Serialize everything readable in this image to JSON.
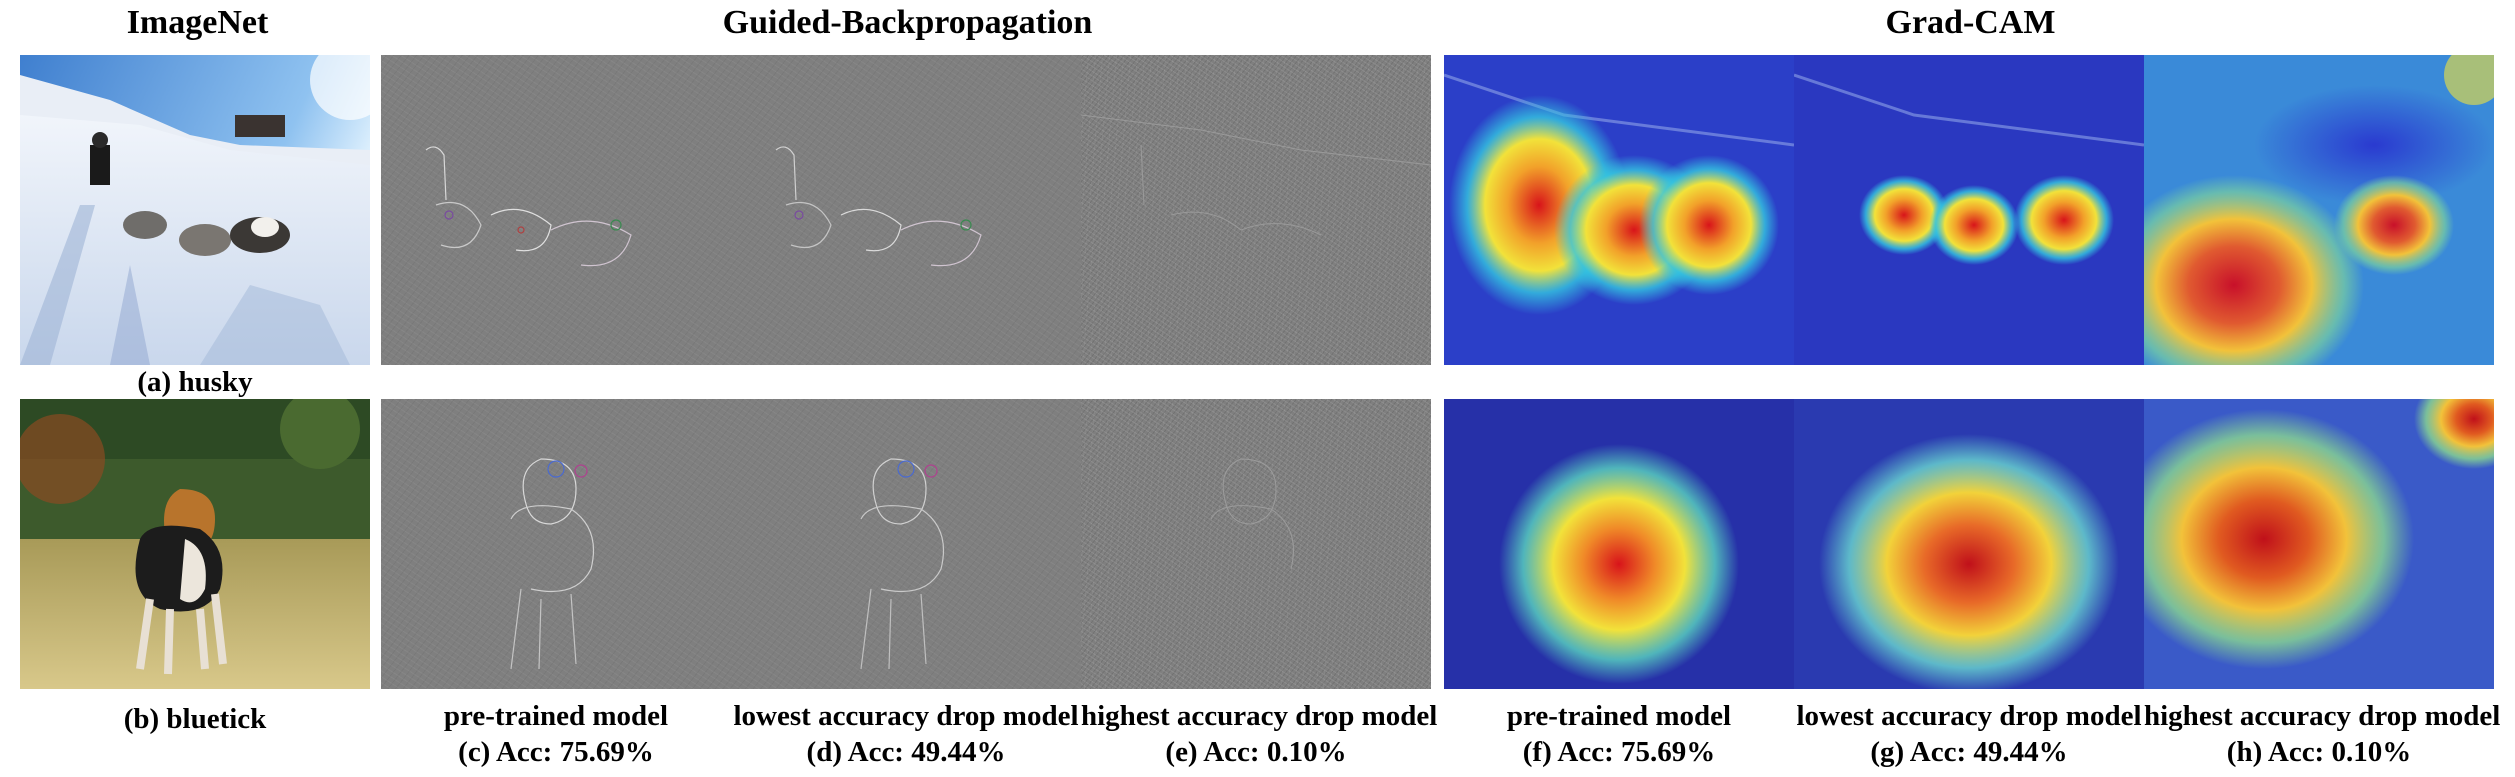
{
  "headers": {
    "imagenet": "ImageNet",
    "guided_backprop": "Guided-Backpropagation",
    "gradcam": "Grad-CAM"
  },
  "rows": [
    {
      "label": "(a) husky"
    },
    {
      "label": "(b) bluetick"
    }
  ],
  "columns": [
    {
      "model": "pre-trained model",
      "acc": "(c) Acc: 75.69%"
    },
    {
      "model": "lowest accuracy drop model",
      "acc": "(d) Acc: 49.44%"
    },
    {
      "model": "highest accuracy drop model",
      "acc": "(e) Acc: 0.10%"
    },
    {
      "model": "pre-trained model",
      "acc": "(f) Acc: 75.69%"
    },
    {
      "model": "lowest accuracy drop model",
      "acc": "(g) Acc: 49.44%"
    },
    {
      "model": "highest accuracy drop model",
      "acc": "(h) Acc: 0.10%"
    }
  ],
  "colors": {
    "gbp_gray": "#7f7f7f",
    "heat_low": "#2a3ad0",
    "heat_mid": "#f2e23a",
    "heat_high": "#d8141a"
  }
}
